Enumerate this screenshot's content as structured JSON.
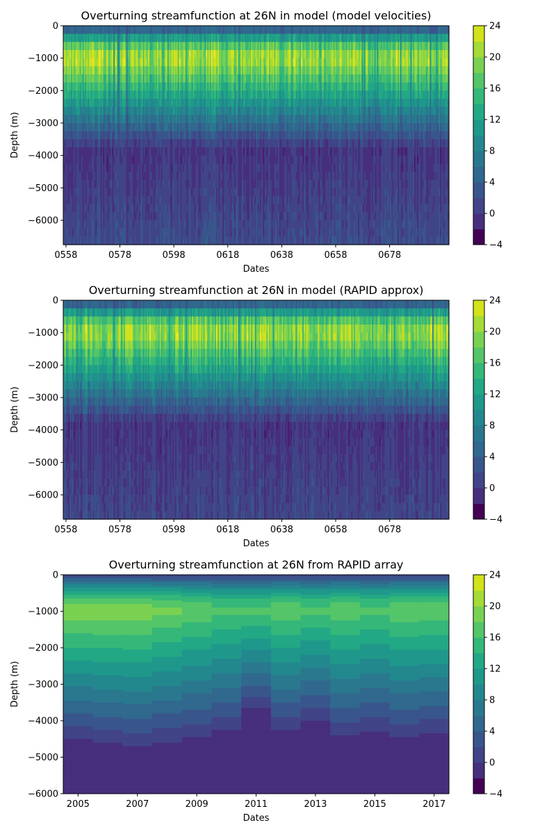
{
  "colormap": {
    "levels": [
      -4,
      -2,
      0,
      2,
      4,
      6,
      8,
      10,
      12,
      14,
      16,
      18,
      20,
      22,
      24
    ],
    "colors": [
      "#440154",
      "#481a6c",
      "#472f7d",
      "#414487",
      "#39568c",
      "#31688e",
      "#2a788e",
      "#23888e",
      "#1f988b",
      "#22a884",
      "#35b779",
      "#54c568",
      "#7ad151",
      "#a5db36",
      "#d2e21b",
      "#fde725"
    ],
    "ticks": [
      "−4",
      "0",
      "4",
      "8",
      "12",
      "16",
      "20",
      "24"
    ]
  },
  "chart_data": [
    {
      "type": "heatmap",
      "title": "Overturning streamfunction at 26N in model (model velocities)",
      "xlabel": "Dates",
      "ylabel": "Depth (m)",
      "xticks": [
        "0558",
        "0578",
        "0598",
        "0618",
        "0638",
        "0658",
        "0678"
      ],
      "xlim": [
        557,
        700
      ],
      "yticks": [
        "0",
        "−1000",
        "−2000",
        "−3000",
        "−4000",
        "−5000",
        "−6000"
      ],
      "ylim": [
        -6750,
        0
      ],
      "colorbar_ticks": [
        "24",
        "20",
        "16",
        "12",
        "8",
        "4",
        "0",
        "−4"
      ],
      "profile": {
        "max_value": 21,
        "max_depth": -1050,
        "deep_value": -0.5,
        "bottom_value": 1.5
      }
    },
    {
      "type": "heatmap",
      "title": "Overturning streamfunction at 26N in model (RAPID approx)",
      "xlabel": "Dates",
      "ylabel": "Depth (m)",
      "xticks": [
        "0558",
        "0578",
        "0598",
        "0618",
        "0638",
        "0658",
        "0678"
      ],
      "xlim": [
        557,
        700
      ],
      "yticks": [
        "0",
        "−1000",
        "−2000",
        "−3000",
        "−4000",
        "−5000",
        "−6000"
      ],
      "ylim": [
        -6750,
        0
      ],
      "colorbar_ticks": [
        "24",
        "20",
        "16",
        "12",
        "8",
        "4",
        "0",
        "−4"
      ],
      "profile": {
        "max_value": 21,
        "max_depth": -1050,
        "deep_value": -0.5,
        "bottom_value": 1.0
      }
    },
    {
      "type": "heatmap",
      "title": "Overturning streamfunction at 26N from RAPID array",
      "xlabel": "Dates",
      "ylabel": "Depth (m)",
      "xticks": [
        "2005",
        "2007",
        "2009",
        "2011",
        "2013",
        "2015",
        "2017"
      ],
      "xlim": [
        2004.5,
        2017.5
      ],
      "yticks": [
        "0",
        "−1000",
        "−2000",
        "−3000",
        "−4000",
        "−5000",
        "−6000"
      ],
      "ylim": [
        -6000,
        0
      ],
      "colorbar_ticks": [
        "24",
        "20",
        "16",
        "12",
        "8",
        "4",
        "0",
        "−4"
      ],
      "years": [
        2005,
        2006,
        2007,
        2008,
        2009,
        2010,
        2011,
        2012,
        2013,
        2014,
        2015,
        2016,
        2017
      ],
      "max_transport": [
        19,
        19,
        19,
        18,
        17,
        16,
        16,
        17,
        16,
        17,
        16,
        17,
        17
      ],
      "zero_crossing_depth": [
        -4500,
        -4600,
        -4700,
        -4580,
        -4450,
        -4250,
        -3650,
        -4250,
        -4000,
        -4400,
        -4300,
        -4450,
        -4330
      ]
    }
  ]
}
